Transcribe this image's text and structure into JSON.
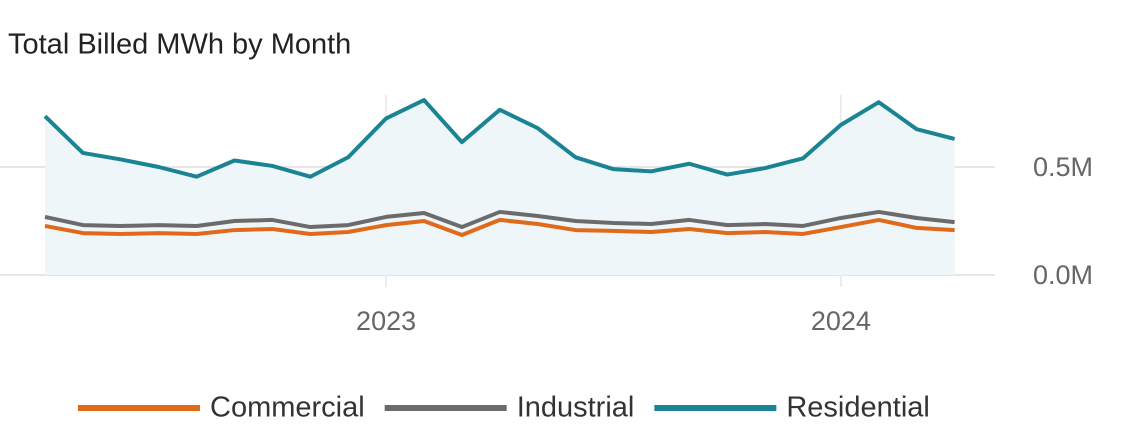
{
  "chart_data": {
    "type": "line",
    "title": "Total Billed MWh by Month",
    "categories": [
      null,
      null,
      null,
      null,
      null,
      null,
      null,
      null,
      null,
      "2023",
      null,
      null,
      null,
      null,
      null,
      null,
      null,
      null,
      null,
      null,
      null,
      "2024",
      null,
      null,
      null
    ],
    "series": [
      {
        "name": "Commercial",
        "color": "#e0691a",
        "area_color": "#fbf4ef",
        "values": [
          227000,
          194000,
          190000,
          194000,
          190000,
          208000,
          213000,
          190000,
          199000,
          231000,
          250000,
          185000,
          255000,
          236000,
          208000,
          204000,
          199000,
          213000,
          194000,
          199000,
          190000,
          222000,
          255000,
          218000,
          208000
        ]
      },
      {
        "name": "Industrial",
        "color": "#6b6b6b",
        "values": [
          269000,
          231000,
          227000,
          231000,
          227000,
          250000,
          255000,
          222000,
          231000,
          269000,
          287000,
          222000,
          292000,
          273000,
          250000,
          241000,
          236000,
          255000,
          231000,
          236000,
          227000,
          264000,
          292000,
          264000,
          245000
        ]
      },
      {
        "name": "Residential",
        "color": "#1b8494",
        "area_color": "#eef6f9",
        "values": [
          735000,
          565000,
          535000,
          500000,
          455000,
          530000,
          505000,
          455000,
          545000,
          725000,
          810000,
          615000,
          765000,
          680000,
          545000,
          490000,
          480000,
          515000,
          465000,
          495000,
          540000,
          695000,
          800000,
          675000,
          630000
        ]
      }
    ],
    "ylim": [
      0,
      850000
    ],
    "yticks": [
      {
        "value": 0,
        "label": "0.0M"
      },
      {
        "value": 500000,
        "label": "0.5M"
      }
    ],
    "grid": true,
    "legend": "bottom"
  }
}
